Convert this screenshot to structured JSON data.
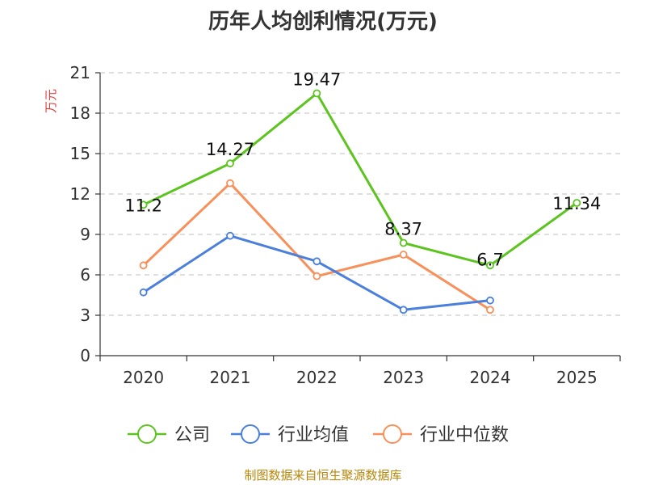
{
  "title": "历年人均创利情况(万元)",
  "source": "制图数据来自恒生聚源数据库",
  "colors": {
    "公司": "#5cc41e",
    "行业均值": "#4a7fdb",
    "行业中位数": "#f7905b"
  },
  "chart_data": {
    "type": "line",
    "title": "历年人均创利情况(万元)",
    "ylabel": "万元",
    "xlabel": "",
    "categories": [
      "2020",
      "2021",
      "2022",
      "2023",
      "2024",
      "2025"
    ],
    "ylim": [
      0,
      21
    ],
    "yticks": [
      0,
      3,
      6,
      9,
      12,
      15,
      18,
      21
    ],
    "grid": true,
    "legend_position": "bottom",
    "series": [
      {
        "name": "公司",
        "values": [
          11.2,
          14.27,
          19.47,
          8.37,
          6.7,
          11.34
        ],
        "labels": [
          "11.2",
          "14.27",
          "19.47",
          "8.37",
          "6.7",
          "11.34"
        ]
      },
      {
        "name": "行业均值",
        "values": [
          4.7,
          8.9,
          7.0,
          3.4,
          4.1,
          null
        ]
      },
      {
        "name": "行业中位数",
        "values": [
          6.7,
          12.8,
          5.9,
          7.5,
          3.4,
          null
        ]
      }
    ]
  }
}
